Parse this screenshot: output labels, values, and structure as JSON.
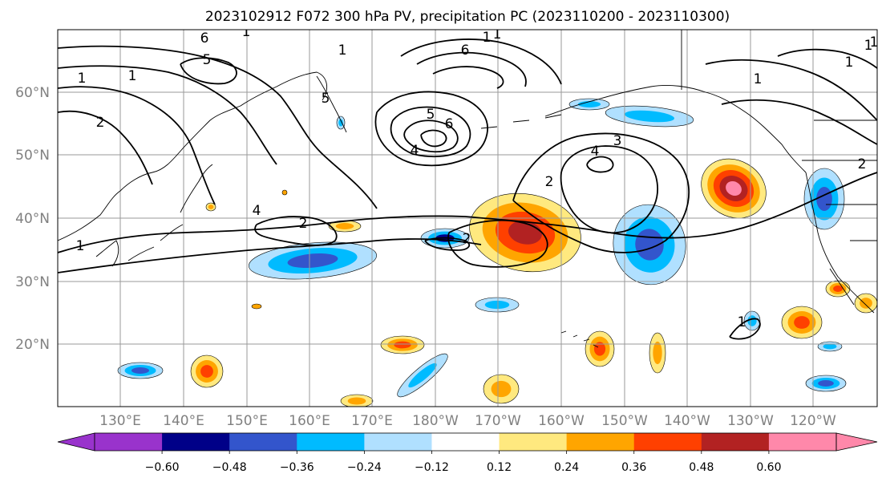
{
  "title": "2023102912 F072 300 hPa PV, precipitation PC (2023110200 - 2023110300)",
  "map": {
    "lat_labels": [
      "60°N",
      "50°N",
      "40°N",
      "30°N",
      "20°N"
    ],
    "lon_labels": [
      "130°E",
      "140°E",
      "150°E",
      "160°E",
      "170°E",
      "180°W",
      "170°W",
      "160°W",
      "150°W",
      "140°W",
      "130°W",
      "120°W"
    ],
    "contour_labels": [
      "1",
      "2",
      "4",
      "6",
      "5",
      "1",
      "2",
      "1",
      "6",
      "5",
      "4",
      "6",
      "1",
      "4",
      "3",
      "2",
      "1",
      "1",
      "2",
      "1",
      "1",
      "1",
      "1",
      "2",
      "1",
      "5",
      "1"
    ]
  },
  "colorbar": {
    "tick_labels": [
      "−0.60",
      "−0.48",
      "−0.36",
      "−0.24",
      "−0.12",
      "0.12",
      "0.24",
      "0.36",
      "0.48",
      "0.60"
    ],
    "colors": [
      "#9933cc",
      "#000088",
      "#3355cc",
      "#00bbff",
      "#b0e0ff",
      "#ffffff",
      "#ffe97f",
      "#ffa500",
      "#ff4000",
      "#b22222",
      "#ff88aa"
    ]
  }
}
